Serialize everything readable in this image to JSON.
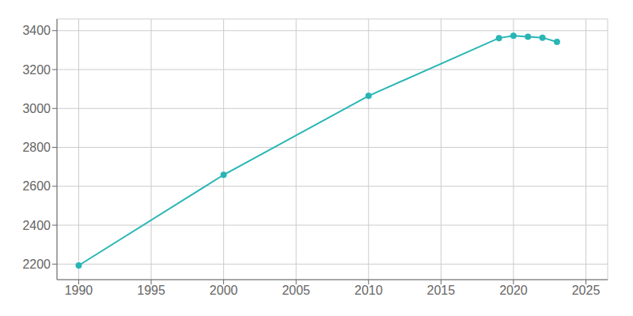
{
  "chart_data": {
    "type": "line",
    "x": [
      1990,
      2000,
      2010,
      2019,
      2020,
      2021,
      2022,
      2023
    ],
    "values": [
      2193,
      2659,
      3065,
      3362,
      3374,
      3369,
      3364,
      3342
    ],
    "color": "#2ab5b5",
    "xlim": [
      1988.5,
      2026.5
    ],
    "ylim": [
      2120,
      3460
    ],
    "xticks": [
      1990,
      1995,
      2000,
      2005,
      2010,
      2015,
      2020,
      2025
    ],
    "yticks": [
      2200,
      2400,
      2600,
      2800,
      3000,
      3200,
      3400
    ],
    "grid": true,
    "marker": "circle"
  }
}
